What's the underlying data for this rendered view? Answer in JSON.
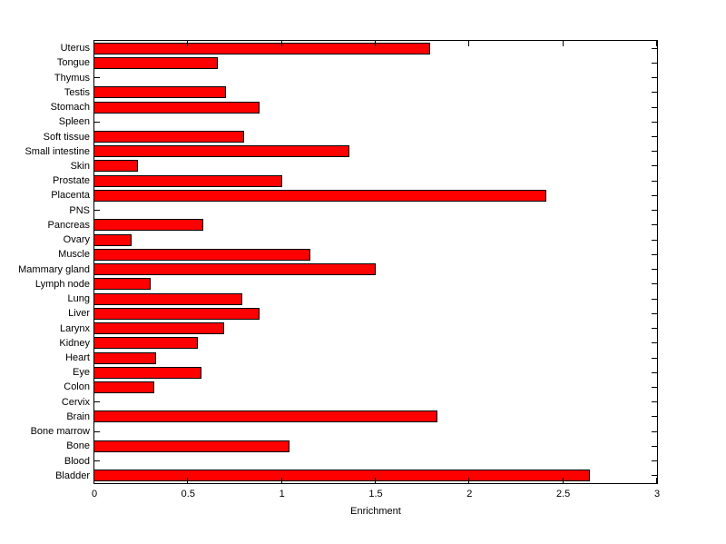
{
  "figure": {
    "background": "#ffffff",
    "axis_color": "#000000"
  },
  "chart_data": {
    "type": "bar",
    "orientation": "horizontal",
    "title": "",
    "xlabel": "Enrichment",
    "ylabel": "",
    "xlim": [
      0,
      3
    ],
    "xticks": [
      0,
      0.5,
      1,
      1.5,
      2,
      2.5,
      3
    ],
    "xtick_labels": [
      "0",
      "0.5",
      "1",
      "1.5",
      "2",
      "2.5",
      "3"
    ],
    "categories": [
      "Uterus",
      "Tongue",
      "Thymus",
      "Testis",
      "Stomach",
      "Spleen",
      "Soft tissue",
      "Small intestine",
      "Skin",
      "Prostate",
      "Placenta",
      "PNS",
      "Pancreas",
      "Ovary",
      "Muscle",
      "Mammary gland",
      "Lymph node",
      "Lung",
      "Liver",
      "Larynx",
      "Kidney",
      "Heart",
      "Eye",
      "Colon",
      "Cervix",
      "Brain",
      "Bone marrow",
      "Bone",
      "Blood",
      "Bladder"
    ],
    "values": [
      1.79,
      0.66,
      0,
      0.7,
      0.88,
      0,
      0.8,
      1.36,
      0.23,
      1.0,
      2.41,
      0,
      0.58,
      0.2,
      1.15,
      1.5,
      0.3,
      0.79,
      0.88,
      0.69,
      0.55,
      0.33,
      0.57,
      0.32,
      0,
      1.83,
      0,
      1.04,
      0,
      2.64
    ],
    "bar_color": "#ff0000",
    "bar_edge_color": "#000000",
    "grid": false,
    "legend_position": "none"
  }
}
